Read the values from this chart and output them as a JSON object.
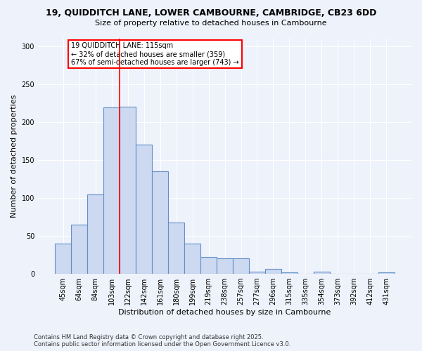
{
  "title_line1": "19, QUIDDITCH LANE, LOWER CAMBOURNE, CAMBRIDGE, CB23 6DD",
  "title_line2": "Size of property relative to detached houses in Cambourne",
  "xlabel": "Distribution of detached houses by size in Cambourne",
  "ylabel": "Number of detached properties",
  "categories": [
    "45sqm",
    "64sqm",
    "84sqm",
    "103sqm",
    "122sqm",
    "142sqm",
    "161sqm",
    "180sqm",
    "199sqm",
    "219sqm",
    "238sqm",
    "257sqm",
    "277sqm",
    "296sqm",
    "315sqm",
    "335sqm",
    "354sqm",
    "373sqm",
    "392sqm",
    "412sqm",
    "431sqm"
  ],
  "values": [
    40,
    65,
    105,
    219,
    220,
    170,
    135,
    68,
    40,
    22,
    20,
    20,
    3,
    7,
    2,
    0,
    3,
    0,
    0,
    0,
    2
  ],
  "bar_color": "#ccd9f0",
  "bar_edge_color": "#6090c8",
  "red_line_x": 3.5,
  "annotation_text": "19 QUIDDITCH LANE: 115sqm\n← 32% of detached houses are smaller (359)\n67% of semi-detached houses are larger (743) →",
  "annotation_box_color": "white",
  "annotation_box_edge_color": "red",
  "footer_line1": "Contains HM Land Registry data © Crown copyright and database right 2025.",
  "footer_line2": "Contains public sector information licensed under the Open Government Licence v3.0.",
  "ylim": [
    0,
    310
  ],
  "background_color": "#eef2fb",
  "grid_color": "white"
}
